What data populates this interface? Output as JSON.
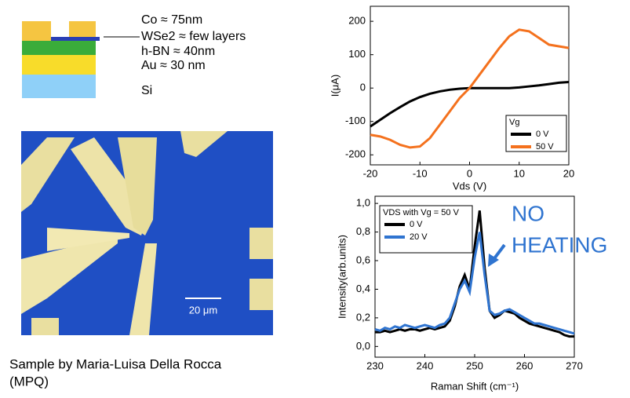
{
  "diagram": {
    "layers": [
      "Co  ≈ 75nm",
      "WSe2 ≈  few layers",
      "h-BN ≈ 40nm",
      "Au   ≈ 30 nm",
      "Si"
    ]
  },
  "micrograph": {
    "scale_bar": "20 μm"
  },
  "caption": [
    "Sample by Maria-Luisa Della Rocca",
    "(MPQ)"
  ],
  "annotation": [
    "NO",
    "HEATING"
  ],
  "chart_data": [
    {
      "type": "line",
      "x_label": "Vds (V)",
      "y_label": "I(μA)",
      "legend_title": "Vg",
      "x": [
        -20,
        -18,
        -16,
        -14,
        -12,
        -10,
        -8,
        -6,
        -4,
        -2,
        0,
        2,
        4,
        6,
        8,
        10,
        12,
        14,
        16,
        18,
        20
      ],
      "series": [
        {
          "name": "0 V",
          "color": "#000000",
          "values": [
            -115,
            -95,
            -75,
            -57,
            -40,
            -27,
            -17,
            -10,
            -5,
            -2,
            0,
            0,
            0,
            0,
            0,
            2,
            5,
            8,
            12,
            16,
            18
          ]
        },
        {
          "name": "50 V",
          "color": "#f4711d",
          "values": [
            -140,
            -145,
            -155,
            -170,
            -178,
            -175,
            -150,
            -110,
            -70,
            -30,
            0,
            40,
            80,
            120,
            155,
            175,
            170,
            150,
            130,
            125,
            120
          ]
        }
      ],
      "xlim": [
        -20,
        20
      ],
      "ylim": [
        -230,
        245
      ],
      "xticks": [
        -20,
        -10,
        0,
        10,
        20
      ],
      "yticks": [
        -200,
        -100,
        0,
        100,
        200
      ]
    },
    {
      "type": "line",
      "x_label": "Raman Shift (cm⁻¹)",
      "y_label": "Intensity(arb.units)",
      "legend_title": "VDS with Vg = 50 V",
      "x": [
        230,
        231,
        232,
        233,
        234,
        235,
        236,
        237,
        238,
        239,
        240,
        241,
        242,
        243,
        244,
        245,
        246,
        247,
        248,
        249,
        250,
        251,
        252,
        253,
        254,
        255,
        256,
        257,
        258,
        259,
        260,
        261,
        262,
        263,
        264,
        265,
        266,
        267,
        268,
        269,
        270
      ],
      "series": [
        {
          "name": "0 V",
          "color": "#000000",
          "values": [
            0.1,
            0.1,
            0.11,
            0.1,
            0.11,
            0.12,
            0.11,
            0.12,
            0.12,
            0.11,
            0.12,
            0.13,
            0.12,
            0.13,
            0.14,
            0.18,
            0.28,
            0.42,
            0.5,
            0.4,
            0.7,
            0.95,
            0.55,
            0.25,
            0.2,
            0.22,
            0.25,
            0.24,
            0.23,
            0.2,
            0.18,
            0.16,
            0.15,
            0.14,
            0.13,
            0.12,
            0.11,
            0.1,
            0.08,
            0.07,
            0.07
          ]
        },
        {
          "name": "20 V",
          "color": "#2f74d0",
          "values": [
            0.12,
            0.11,
            0.13,
            0.12,
            0.14,
            0.13,
            0.15,
            0.14,
            0.13,
            0.14,
            0.15,
            0.14,
            0.13,
            0.15,
            0.16,
            0.2,
            0.3,
            0.4,
            0.46,
            0.38,
            0.62,
            0.8,
            0.5,
            0.25,
            0.22,
            0.23,
            0.25,
            0.26,
            0.24,
            0.22,
            0.2,
            0.18,
            0.16,
            0.16,
            0.15,
            0.14,
            0.13,
            0.12,
            0.11,
            0.1,
            0.09
          ]
        }
      ],
      "xlim": [
        230,
        270
      ],
      "ylim": [
        -0.075,
        1.05
      ],
      "xticks": [
        230,
        240,
        250,
        260,
        270
      ],
      "yticks": [
        {
          "value": 0,
          "label": "0,0"
        },
        {
          "value": 0.2,
          "label": "0,2"
        },
        {
          "value": 0.4,
          "label": "0,4"
        },
        {
          "value": 0.6,
          "label": "0,6"
        },
        {
          "value": 0.8,
          "label": "0,8"
        },
        {
          "value": 1.0,
          "label": "1,0"
        }
      ]
    }
  ]
}
